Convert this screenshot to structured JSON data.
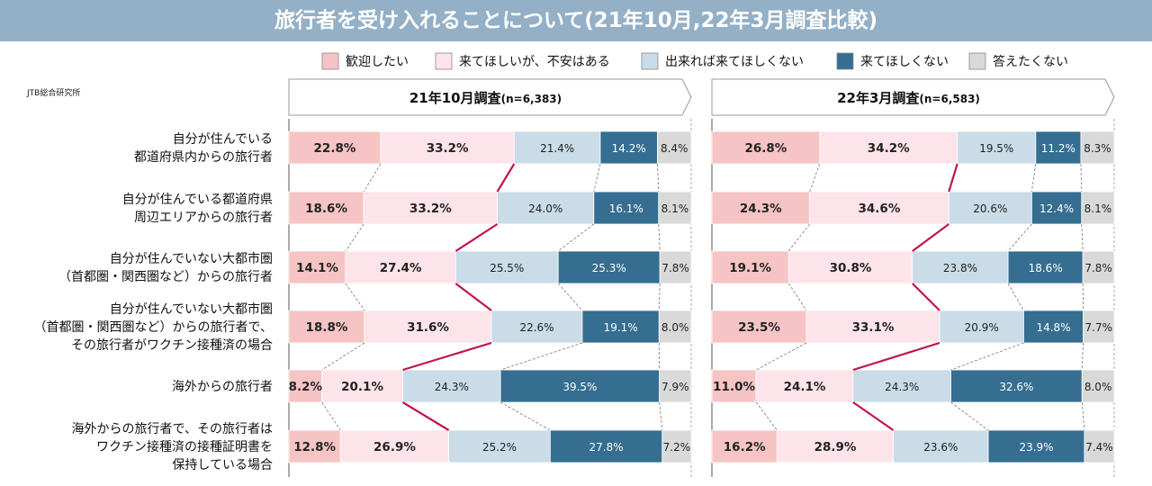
{
  "title": "旅行者を受け入れることについて(21年10月,22年3月調査比較)",
  "source": "JTB総合研究所",
  "colors": {
    "title_bg": "#93b0c7",
    "series": [
      "#f6c4c4",
      "#fde4ea",
      "#c9dce8",
      "#356e91",
      "#d9d9d9"
    ],
    "connector": "#c3144c"
  },
  "legend": [
    "歓迎したい",
    "来てほしいが、不安はある",
    "出来れば来てほしくない",
    "来てほしくない",
    "答えたくない"
  ],
  "row_labels": [
    [
      "自分が住んでいる",
      "都道府県内からの旅行者"
    ],
    [
      "自分が住んでいる都道府県",
      "周辺エリアからの旅行者"
    ],
    [
      "自分が住んでいない大都市圏",
      "（首都圏・関西圏など）からの旅行者"
    ],
    [
      "自分が住んでいない大都市圏",
      "（首都圏・関西圏など）からの旅行者で、",
      "その旅行者がワクチン接種済の場合"
    ],
    [
      "海外からの旅行者"
    ],
    [
      "海外からの旅行者で、その旅行者は",
      "ワクチン接種済の接種証明書を",
      "保持している場合"
    ]
  ],
  "chart_data": [
    {
      "type": "bar",
      "stacked": true,
      "orientation": "horizontal",
      "title": "21年10月調査",
      "n_label": "(n=6,383)",
      "categories": [
        "自分が住んでいる都道府県内からの旅行者",
        "自分が住んでいる都道府県周辺エリアからの旅行者",
        "自分が住んでいない大都市圏（首都圏・関西圏など）からの旅行者",
        "自分が住んでいない大都市圏（首都圏・関西圏など）からの旅行者で、その旅行者がワクチン接種済の場合",
        "海外からの旅行者",
        "海外からの旅行者で、その旅行者はワクチン接種済の接種証明書を保持している場合"
      ],
      "unit": "%",
      "series": [
        {
          "name": "歓迎したい",
          "values": [
            22.8,
            18.6,
            14.1,
            18.8,
            8.2,
            12.8
          ]
        },
        {
          "name": "来てほしいが、不安はある",
          "values": [
            33.2,
            33.2,
            27.4,
            31.6,
            20.1,
            26.9
          ]
        },
        {
          "name": "出来れば来てほしくない",
          "values": [
            21.4,
            24.0,
            25.5,
            22.6,
            24.3,
            25.2
          ]
        },
        {
          "name": "来てほしくない",
          "values": [
            14.2,
            16.1,
            25.3,
            19.1,
            39.5,
            27.8
          ]
        },
        {
          "name": "答えたくない",
          "values": [
            8.4,
            8.1,
            7.8,
            8.0,
            7.9,
            7.2
          ]
        }
      ]
    },
    {
      "type": "bar",
      "stacked": true,
      "orientation": "horizontal",
      "title": "22年3月調査",
      "n_label": "(n=6,583)",
      "categories": [
        "自分が住んでいる都道府県内からの旅行者",
        "自分が住んでいる都道府県周辺エリアからの旅行者",
        "自分が住んでいない大都市圏（首都圏・関西圏など）からの旅行者",
        "自分が住んでいない大都市圏（首都圏・関西圏など）からの旅行者で、その旅行者がワクチン接種済の場合",
        "海外からの旅行者",
        "海外からの旅行者で、その旅行者はワクチン接種済の接種証明書を保持している場合"
      ],
      "unit": "%",
      "series": [
        {
          "name": "歓迎したい",
          "values": [
            26.8,
            24.3,
            19.1,
            23.5,
            11.0,
            16.2
          ]
        },
        {
          "name": "来てほしいが、不安はある",
          "values": [
            34.2,
            34.6,
            30.8,
            33.1,
            24.1,
            28.9
          ]
        },
        {
          "name": "出来れば来てほしくない",
          "values": [
            19.5,
            20.6,
            23.8,
            20.9,
            24.3,
            23.6
          ]
        },
        {
          "name": "来てほしくない",
          "values": [
            11.2,
            12.4,
            18.6,
            14.8,
            32.6,
            23.9
          ]
        },
        {
          "name": "答えたくない",
          "values": [
            8.3,
            8.1,
            7.8,
            7.7,
            8.0,
            7.4
          ]
        }
      ]
    }
  ]
}
